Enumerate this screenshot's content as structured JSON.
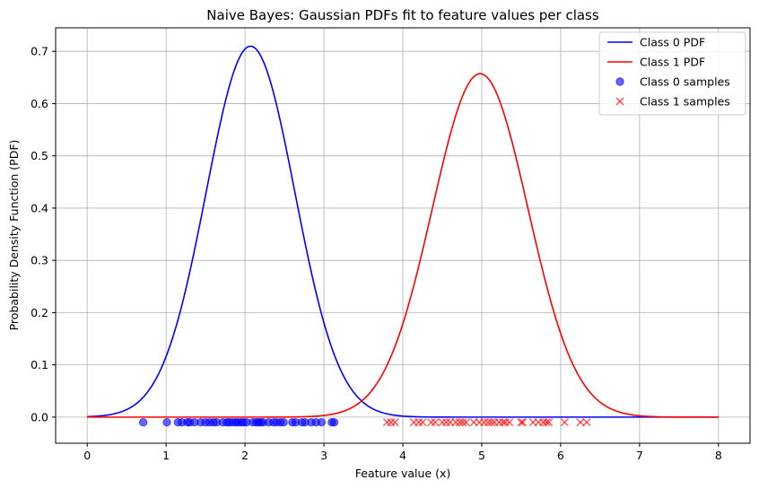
{
  "chart_data": {
    "type": "line",
    "title": "Naive Bayes: Gaussian PDFs fit to feature values per class",
    "xlabel": "Feature value (x)",
    "ylabel": "Probability Density Function (PDF)",
    "xlim": [
      -0.4,
      8.4
    ],
    "ylim": [
      -0.05,
      0.745
    ],
    "x_ticks": [
      "0",
      "1",
      "2",
      "3",
      "4",
      "5",
      "6",
      "7",
      "8"
    ],
    "y_ticks": [
      "0.0",
      "0.1",
      "0.2",
      "0.3",
      "0.4",
      "0.5",
      "0.6",
      "0.7"
    ],
    "grid": true,
    "legend_position": "top-right",
    "colors": {
      "class0": "#0000ff",
      "class1": "#ff0000"
    },
    "series": [
      {
        "name": "Class 0 PDF",
        "kind": "line",
        "distribution": "gaussian",
        "mean": 2.07,
        "std": 0.562,
        "x_range": [
          0,
          8
        ]
      },
      {
        "name": "Class 1 PDF",
        "kind": "line",
        "distribution": "gaussian",
        "mean": 4.98,
        "std": 0.607,
        "x_range": [
          0,
          8
        ]
      },
      {
        "name": "Class 0 samples",
        "kind": "scatter",
        "marker": "circle",
        "y": -0.01,
        "x": [
          0.71,
          1.01,
          1.15,
          1.2,
          1.27,
          1.3,
          1.36,
          1.44,
          1.5,
          1.55,
          1.6,
          1.64,
          1.72,
          1.77,
          1.8,
          1.84,
          1.88,
          1.91,
          1.95,
          1.98,
          2.02,
          2.1,
          2.14,
          2.17,
          2.2,
          2.23,
          2.3,
          2.36,
          2.4,
          2.45,
          2.49,
          2.6,
          2.64,
          2.72,
          2.76,
          2.84,
          2.9,
          2.97,
          3.1,
          3.13
        ]
      },
      {
        "name": "Class 1 samples",
        "kind": "scatter",
        "marker": "x",
        "y": -0.01,
        "x": [
          3.8,
          3.85,
          3.9,
          4.14,
          4.2,
          4.25,
          4.36,
          4.41,
          4.5,
          4.55,
          4.6,
          4.67,
          4.72,
          4.76,
          4.8,
          4.9,
          4.97,
          5.03,
          5.08,
          5.12,
          5.16,
          5.22,
          5.27,
          5.3,
          5.35,
          5.5,
          5.52,
          5.65,
          5.72,
          5.78,
          5.82,
          5.85,
          6.05,
          6.25,
          6.33
        ]
      }
    ]
  }
}
